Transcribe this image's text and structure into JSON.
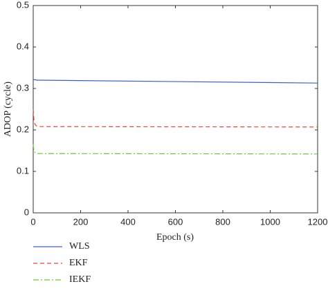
{
  "chart_data": {
    "type": "line",
    "xlabel": "Epoch (s)",
    "ylabel": "ADOP (cycle)",
    "x": [
      0,
      3,
      8,
      15,
      25,
      1200
    ],
    "series": [
      {
        "name": "WLS",
        "color": "#3a5fcd",
        "linestyle": "solid",
        "values": [
          0.321,
          0.321,
          0.321,
          0.32,
          0.32,
          0.313
        ]
      },
      {
        "name": "EKF",
        "color": "#e8443a",
        "linestyle": "dashed",
        "values": [
          0.25,
          0.225,
          0.213,
          0.209,
          0.208,
          0.207
        ]
      },
      {
        "name": "IEKF",
        "color": "#66cc33",
        "linestyle": "dashdot",
        "values": [
          0.165,
          0.15,
          0.145,
          0.143,
          0.143,
          0.142
        ]
      }
    ],
    "xlim": [
      0,
      1200
    ],
    "xticks": [
      0,
      200,
      400,
      600,
      800,
      1000,
      1200
    ],
    "ylim": [
      0,
      0.5
    ],
    "yticks": [
      0,
      0.1,
      0.2,
      0.3,
      0.4,
      0.5
    ],
    "legend": "below"
  }
}
